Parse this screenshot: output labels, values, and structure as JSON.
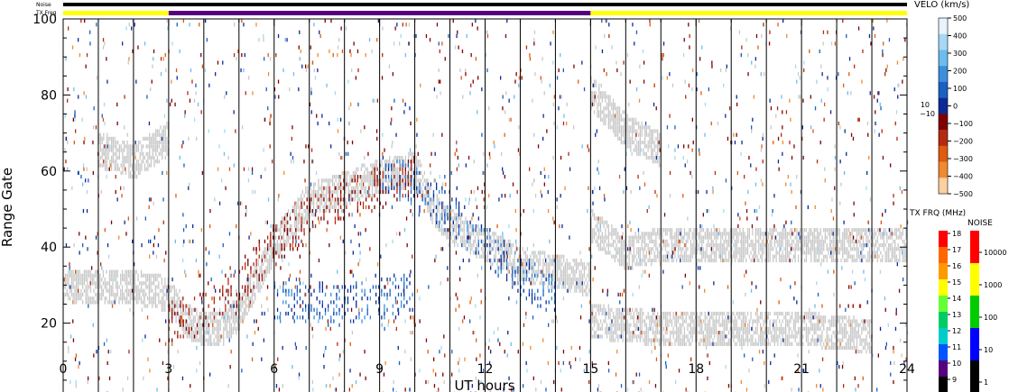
{
  "chart_data": {
    "type": "heatmap",
    "xlabel": "UT hours",
    "ylabel": "Range Gate",
    "xlim": [
      0,
      24
    ],
    "ylim": [
      0,
      100
    ],
    "xticks": [
      "0",
      "3",
      "6",
      "9",
      "12",
      "15",
      "18",
      "21",
      "24"
    ],
    "yticks": [
      "0",
      "20",
      "40",
      "60",
      "80",
      "100"
    ],
    "top_bars": {
      "noise_label": "Noise",
      "txfreq_label": "TX Freq",
      "segments": [
        {
          "start": 0,
          "end": 3,
          "color": "#ffff00"
        },
        {
          "start": 3,
          "end": 15,
          "color": "#55007f"
        },
        {
          "start": 15,
          "end": 24,
          "color": "#ffff00"
        }
      ]
    },
    "velocity_scale": {
      "title": "VELO (km/s)",
      "ticks": [
        "500",
        "400",
        "300",
        "200",
        "100",
        "0",
        "−100",
        "−200",
        "−300",
        "−400",
        "−500"
      ],
      "side_labels": [
        "10",
        "−10"
      ],
      "colors": [
        "#e8f4fc",
        "#a6d8f5",
        "#6cbcee",
        "#3a90dc",
        "#1a5fc4",
        "#0a2a98",
        "#7f0000",
        "#b52a10",
        "#e05a10",
        "#f08a30",
        "#fcd0a0"
      ],
      "ground_scatter_color": "#c8c8c8"
    },
    "txfreq_scale": {
      "title": "TX FRQ (MHz)",
      "ticks": [
        "18",
        "17",
        "16",
        "15",
        "14",
        "13",
        "12",
        "11",
        "10",
        "9"
      ],
      "colors": [
        "#ff0000",
        "#ff6600",
        "#ff9900",
        "#ffff00",
        "#66ff33",
        "#00cc66",
        "#00cccc",
        "#0055ff",
        "#55007f",
        "#000000"
      ]
    },
    "noise_scale": {
      "title": "NOISE",
      "ticks": [
        "10000",
        "1000",
        "100",
        "10",
        "1"
      ],
      "colors": [
        "#ff0000",
        "#ffff00",
        "#00cc00",
        "#0000ff",
        "#000000"
      ]
    },
    "series": [
      {
        "type": "ground-scatter band",
        "x": [
          0,
          1,
          2,
          3,
          3.5,
          4,
          4.5,
          5,
          6,
          7,
          8,
          9,
          10,
          10.5,
          11,
          12,
          13,
          14,
          15
        ],
        "y": [
          29,
          29,
          29,
          27,
          20,
          18,
          18,
          22,
          40,
          52,
          55,
          58,
          60,
          50,
          45,
          40,
          35,
          33,
          31
        ]
      },
      {
        "type": "ground-scatter band",
        "x": [
          15,
          16,
          17,
          18,
          19,
          20,
          21,
          22,
          23,
          24
        ],
        "y": [
          45,
          38,
          40,
          40,
          40,
          40,
          40,
          40,
          40,
          40
        ]
      },
      {
        "type": "ground-scatter band",
        "x": [
          15,
          17,
          20,
          21,
          22,
          23
        ],
        "y": [
          20,
          18,
          18,
          18,
          17,
          16
        ]
      },
      {
        "type": "ground-scatter band",
        "x": [
          15,
          15.5,
          16,
          17
        ],
        "y": [
          80,
          75,
          70,
          65
        ]
      },
      {
        "type": "ground-scatter band",
        "x": [
          1,
          2,
          3
        ],
        "y": [
          65,
          62,
          68
        ]
      },
      {
        "type": "negative-velocity band",
        "x": [
          3,
          4,
          5,
          6,
          7,
          8,
          9,
          10
        ],
        "y": [
          20,
          22,
          30,
          40,
          48,
          52,
          55,
          58
        ]
      },
      {
        "type": "positive-velocity band",
        "x": [
          6,
          7,
          8,
          9,
          10
        ],
        "y": [
          25,
          25,
          24,
          26,
          27
        ]
      },
      {
        "type": "positive-velocity band",
        "x": [
          9,
          10,
          11,
          12,
          13,
          14
        ],
        "y": [
          60,
          55,
          48,
          40,
          32,
          26
        ]
      }
    ]
  }
}
